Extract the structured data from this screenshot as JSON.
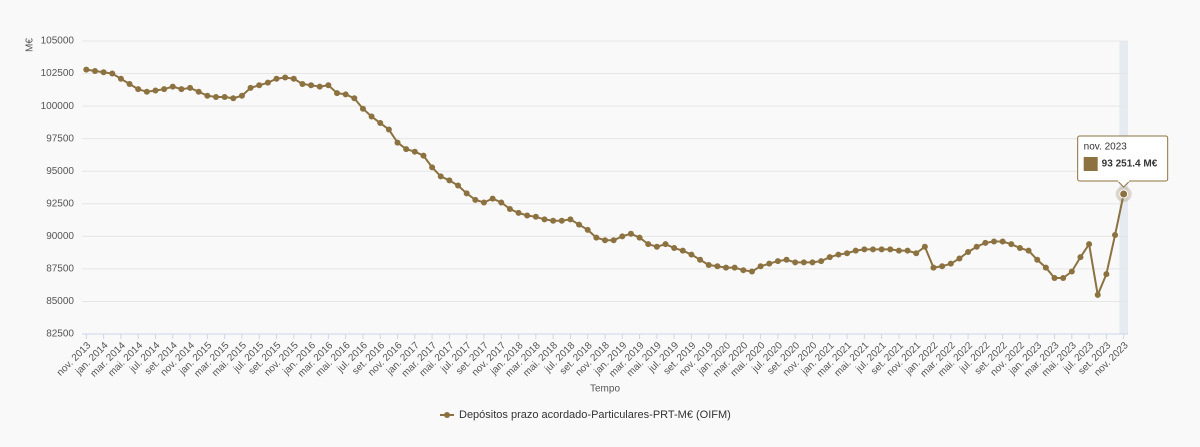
{
  "chart_data": {
    "type": "line",
    "y_label": "M€",
    "x_label": "Tempo",
    "categories": [
      "nov. 2013",
      null,
      "jan. 2014",
      null,
      "mar. 2014",
      null,
      "mai. 2014",
      null,
      "jul. 2014",
      null,
      "set. 2014",
      null,
      "nov. 2014",
      null,
      "jan. 2015",
      null,
      "mar. 2015",
      null,
      "mai. 2015",
      null,
      "jul. 2015",
      null,
      "set. 2015",
      null,
      "nov. 2015",
      null,
      "jan. 2016",
      null,
      "mar. 2016",
      null,
      "mai. 2016",
      null,
      "jul. 2016",
      null,
      "set. 2016",
      null,
      "nov. 2016",
      null,
      "jan. 2017",
      null,
      "mar. 2017",
      null,
      "mai. 2017",
      null,
      "jul. 2017",
      null,
      "set. 2017",
      null,
      "nov. 2017",
      null,
      "jan. 2018",
      null,
      "mar. 2018",
      null,
      "mai. 2018",
      null,
      "jul. 2018",
      null,
      "set. 2018",
      null,
      "nov. 2018",
      null,
      "jan. 2019",
      null,
      "mar. 2019",
      null,
      "mai. 2019",
      null,
      "jul. 2019",
      null,
      "set. 2019",
      null,
      "nov. 2019",
      null,
      "jan. 2020",
      null,
      "mar. 2020",
      null,
      "mai. 2020",
      null,
      "jul. 2020",
      null,
      "set. 2020",
      null,
      "nov. 2020",
      null,
      "jan. 2021",
      null,
      "mar. 2021",
      null,
      "mai. 2021",
      null,
      "jul. 2021",
      null,
      "set. 2021",
      null,
      "nov. 2021",
      null,
      "jan. 2022",
      null,
      "mar. 2022",
      null,
      "mai. 2022",
      null,
      "jul. 2022",
      null,
      "set. 2022",
      null,
      "nov. 2022",
      null,
      "jan. 2023",
      null,
      "mar. 2023",
      null,
      "mai. 2023",
      null,
      "jul. 2023",
      null,
      "set. 2023",
      null,
      "nov. 2023"
    ],
    "series": [
      {
        "name": "Depósitos prazo acordado-Particulares-PRT-M€ (OIFM)",
        "color": "#8c7240",
        "values": [
          102800,
          102700,
          102600,
          102500,
          102100,
          101700,
          101300,
          101100,
          101200,
          101300,
          101500,
          101300,
          101400,
          101100,
          100800,
          100700,
          100700,
          100600,
          100800,
          101400,
          101600,
          101800,
          102100,
          102200,
          102100,
          101700,
          101600,
          101500,
          101600,
          101000,
          100900,
          100600,
          99800,
          99200,
          98700,
          98200,
          97200,
          96700,
          96500,
          96200,
          95300,
          94600,
          94300,
          93900,
          93300,
          92800,
          92600,
          92900,
          92600,
          92100,
          91800,
          91600,
          91500,
          91300,
          91200,
          91200,
          91300,
          90900,
          90500,
          89900,
          89700,
          89700,
          90000,
          90200,
          89900,
          89400,
          89200,
          89400,
          89100,
          88900,
          88600,
          88200,
          87800,
          87700,
          87600,
          87600,
          87400,
          87300,
          87700,
          87900,
          88100,
          88200,
          88000,
          88000,
          88000,
          88100,
          88400,
          88600,
          88700,
          88900,
          89000,
          89000,
          89000,
          89000,
          88900,
          88900,
          88700,
          89200,
          87600,
          87700,
          87900,
          88300,
          88800,
          89200,
          89500,
          89600,
          89600,
          89400,
          89100,
          88900,
          88200,
          87600,
          86800,
          86800,
          87300,
          88400,
          89400,
          85500,
          87100,
          90100,
          93251.4
        ],
        "value_labels": [
          null,
          null,
          null,
          null,
          null,
          null,
          null,
          null,
          null,
          null,
          null,
          null,
          null,
          null,
          null,
          null,
          null,
          null,
          null,
          null,
          null,
          null,
          null,
          null,
          null,
          null,
          null,
          null,
          null,
          null,
          null,
          null,
          null,
          null,
          null,
          null,
          null,
          null,
          null,
          null,
          null,
          null,
          null,
          null,
          null,
          null,
          null,
          null,
          null,
          null,
          null,
          null,
          null,
          null,
          null,
          null,
          null,
          null,
          null,
          null,
          null,
          null,
          null,
          null,
          null,
          null,
          null,
          null,
          null,
          null,
          null,
          null,
          null,
          null,
          null,
          null,
          null,
          null,
          null,
          null,
          null,
          null,
          null,
          null,
          null,
          null,
          null,
          null,
          null,
          null,
          null,
          null,
          null,
          null,
          null,
          null,
          null,
          null,
          null,
          null,
          null,
          null,
          null,
          null,
          null,
          null,
          null,
          null,
          null,
          null,
          null,
          null,
          null,
          null,
          null,
          null,
          null,
          null,
          null,
          null,
          "93 251.4 M€"
        ]
      }
    ],
    "ylim": [
      82500,
      105000
    ],
    "yticks": [
      82500,
      85000,
      87500,
      90000,
      92500,
      95000,
      97500,
      100000,
      102500,
      105000
    ],
    "grid": true,
    "legend": "bottom"
  }
}
